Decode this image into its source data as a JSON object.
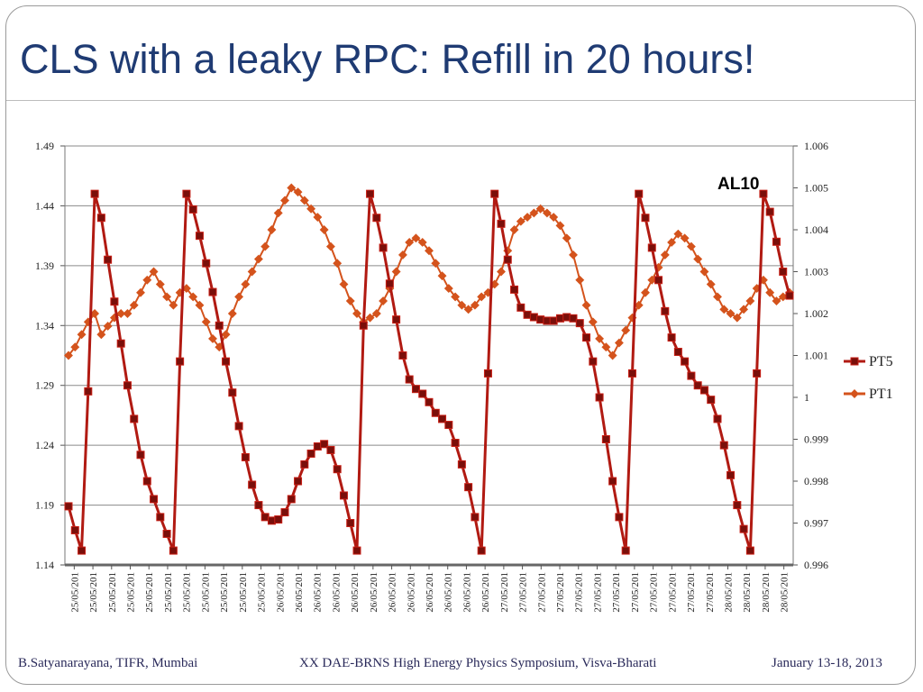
{
  "slide": {
    "title": "CLS with a leaky RPC: Refill in 20 hours!",
    "footer_left": "B.Satyanarayana, TIFR, Mumbai",
    "footer_center": "XX DAE-BRNS High Energy Physics Symposium, Visva-Bharati",
    "footer_right": "January 13-18, 2013"
  },
  "chart_data": {
    "type": "line",
    "title": "",
    "annotation": "AL10",
    "legend_placement": "right",
    "grid": "horizontal",
    "y_left": {
      "ticks": [
        "1.49",
        "1.44",
        "1.39",
        "1.34",
        "1.29",
        "1.24",
        "1.19",
        "1.14"
      ],
      "range": [
        1.14,
        1.49
      ]
    },
    "y_right": {
      "ticks": [
        "1.006",
        "1.005",
        "1.004",
        "1.003",
        "1.002",
        "1.001",
        "1",
        "0.999",
        "0.998",
        "0.997",
        "0.996"
      ],
      "range": [
        0.996,
        1.006
      ]
    },
    "x_tick_labels": [
      "25/05/201",
      "25/05/201",
      "25/05/201",
      "25/05/201",
      "25/05/201",
      "25/05/201",
      "25/05/201",
      "25/05/201",
      "25/05/201",
      "25/05/201",
      "25/05/201",
      "26/05/201",
      "26/05/201",
      "26/05/201",
      "26/05/201",
      "26/05/201",
      "26/05/201",
      "26/05/201",
      "26/05/201",
      "26/05/201",
      "26/05/201",
      "26/05/201",
      "26/05/201",
      "27/05/201",
      "27/05/201",
      "27/05/201",
      "27/05/201",
      "27/05/201",
      "27/05/201",
      "27/05/201",
      "27/05/201",
      "27/05/201",
      "27/05/201",
      "27/05/201",
      "27/05/201",
      "28/05/201",
      "28/05/201",
      "28/05/201",
      "28/05/201"
    ],
    "series": [
      {
        "name": "PT5",
        "axis": "left",
        "color": "#b11a12",
        "points": [
          [
            0,
            1.189
          ],
          [
            1,
            1.169
          ],
          [
            2,
            1.152
          ],
          [
            3,
            1.285
          ],
          [
            4,
            1.45
          ],
          [
            5,
            1.43
          ],
          [
            6,
            1.395
          ],
          [
            7,
            1.36
          ],
          [
            8,
            1.325
          ],
          [
            9,
            1.29
          ],
          [
            10,
            1.262
          ],
          [
            11,
            1.232
          ],
          [
            12,
            1.21
          ],
          [
            13,
            1.195
          ],
          [
            14,
            1.18
          ],
          [
            15,
            1.166
          ],
          [
            16,
            1.152
          ],
          [
            17,
            1.31
          ],
          [
            18,
            1.45
          ],
          [
            19,
            1.437
          ],
          [
            20,
            1.415
          ],
          [
            21,
            1.392
          ],
          [
            22,
            1.368
          ],
          [
            23,
            1.34
          ],
          [
            24,
            1.31
          ],
          [
            25,
            1.284
          ],
          [
            26,
            1.256
          ],
          [
            27,
            1.23
          ],
          [
            28,
            1.207
          ],
          [
            29,
            1.19
          ],
          [
            30,
            1.18
          ],
          [
            31,
            1.177
          ],
          [
            32,
            1.178
          ],
          [
            33,
            1.184
          ],
          [
            34,
            1.195
          ],
          [
            35,
            1.21
          ],
          [
            36,
            1.224
          ],
          [
            37,
            1.233
          ],
          [
            38,
            1.239
          ],
          [
            39,
            1.241
          ],
          [
            40,
            1.236
          ],
          [
            41,
            1.22
          ],
          [
            42,
            1.198
          ],
          [
            43,
            1.175
          ],
          [
            44,
            1.152
          ],
          [
            45,
            1.34
          ],
          [
            46,
            1.45
          ],
          [
            47,
            1.43
          ],
          [
            48,
            1.405
          ],
          [
            49,
            1.375
          ],
          [
            50,
            1.345
          ],
          [
            51,
            1.315
          ],
          [
            52,
            1.295
          ],
          [
            53,
            1.287
          ],
          [
            54,
            1.283
          ],
          [
            55,
            1.276
          ],
          [
            56,
            1.267
          ],
          [
            57,
            1.262
          ],
          [
            58,
            1.257
          ],
          [
            59,
            1.242
          ],
          [
            60,
            1.224
          ],
          [
            61,
            1.205
          ],
          [
            62,
            1.18
          ],
          [
            63,
            1.152
          ],
          [
            64,
            1.3
          ],
          [
            65,
            1.45
          ],
          [
            66,
            1.425
          ],
          [
            67,
            1.395
          ],
          [
            68,
            1.37
          ],
          [
            69,
            1.355
          ],
          [
            70,
            1.349
          ],
          [
            71,
            1.347
          ],
          [
            72,
            1.345
          ],
          [
            73,
            1.344
          ],
          [
            74,
            1.344
          ],
          [
            75,
            1.346
          ],
          [
            76,
            1.347
          ],
          [
            77,
            1.346
          ],
          [
            78,
            1.342
          ],
          [
            79,
            1.33
          ],
          [
            80,
            1.31
          ],
          [
            81,
            1.28
          ],
          [
            82,
            1.245
          ],
          [
            83,
            1.21
          ],
          [
            84,
            1.18
          ],
          [
            85,
            1.152
          ],
          [
            86,
            1.3
          ],
          [
            87,
            1.45
          ],
          [
            88,
            1.43
          ],
          [
            89,
            1.405
          ],
          [
            90,
            1.378
          ],
          [
            91,
            1.352
          ],
          [
            92,
            1.33
          ],
          [
            93,
            1.318
          ],
          [
            94,
            1.31
          ],
          [
            95,
            1.298
          ],
          [
            96,
            1.29
          ],
          [
            97,
            1.286
          ],
          [
            98,
            1.278
          ],
          [
            99,
            1.262
          ],
          [
            100,
            1.24
          ],
          [
            101,
            1.215
          ],
          [
            102,
            1.19
          ],
          [
            103,
            1.17
          ],
          [
            104,
            1.152
          ],
          [
            105,
            1.3
          ],
          [
            106,
            1.45
          ],
          [
            107,
            1.435
          ],
          [
            108,
            1.41
          ],
          [
            109,
            1.385
          ],
          [
            110,
            1.365
          ]
        ]
      },
      {
        "name": "PT1",
        "axis": "right",
        "color": "#d4531c",
        "points": [
          [
            0,
            1.001
          ],
          [
            1,
            1.0012
          ],
          [
            2,
            1.0015
          ],
          [
            3,
            1.0018
          ],
          [
            4,
            1.002
          ],
          [
            5,
            1.0015
          ],
          [
            6,
            1.0017
          ],
          [
            7,
            1.0019
          ],
          [
            8,
            1.002
          ],
          [
            9,
            1.002
          ],
          [
            10,
            1.0022
          ],
          [
            11,
            1.0025
          ],
          [
            12,
            1.0028
          ],
          [
            13,
            1.003
          ],
          [
            14,
            1.0027
          ],
          [
            15,
            1.0024
          ],
          [
            16,
            1.0022
          ],
          [
            17,
            1.0025
          ],
          [
            18,
            1.0026
          ],
          [
            19,
            1.0024
          ],
          [
            20,
            1.0022
          ],
          [
            21,
            1.0018
          ],
          [
            22,
            1.0014
          ],
          [
            23,
            1.0012
          ],
          [
            24,
            1.0015
          ],
          [
            25,
            1.002
          ],
          [
            26,
            1.0024
          ],
          [
            27,
            1.0027
          ],
          [
            28,
            1.003
          ],
          [
            29,
            1.0033
          ],
          [
            30,
            1.0036
          ],
          [
            31,
            1.004
          ],
          [
            32,
            1.0044
          ],
          [
            33,
            1.0047
          ],
          [
            34,
            1.005
          ],
          [
            35,
            1.0049
          ],
          [
            36,
            1.0047
          ],
          [
            37,
            1.0045
          ],
          [
            38,
            1.0043
          ],
          [
            39,
            1.004
          ],
          [
            40,
            1.0036
          ],
          [
            41,
            1.0032
          ],
          [
            42,
            1.0027
          ],
          [
            43,
            1.0023
          ],
          [
            44,
            1.002
          ],
          [
            45,
            1.0018
          ],
          [
            46,
            1.0019
          ],
          [
            47,
            1.002
          ],
          [
            48,
            1.0023
          ],
          [
            49,
            1.0026
          ],
          [
            50,
            1.003
          ],
          [
            51,
            1.0034
          ],
          [
            52,
            1.0037
          ],
          [
            53,
            1.0038
          ],
          [
            54,
            1.0037
          ],
          [
            55,
            1.0035
          ],
          [
            56,
            1.0032
          ],
          [
            57,
            1.0029
          ],
          [
            58,
            1.0026
          ],
          [
            59,
            1.0024
          ],
          [
            60,
            1.0022
          ],
          [
            61,
            1.0021
          ],
          [
            62,
            1.0022
          ],
          [
            63,
            1.0024
          ],
          [
            64,
            1.0025
          ],
          [
            65,
            1.0027
          ],
          [
            66,
            1.003
          ],
          [
            67,
            1.0035
          ],
          [
            68,
            1.004
          ],
          [
            69,
            1.0042
          ],
          [
            70,
            1.0043
          ],
          [
            71,
            1.0044
          ],
          [
            72,
            1.0045
          ],
          [
            73,
            1.0044
          ],
          [
            74,
            1.0043
          ],
          [
            75,
            1.0041
          ],
          [
            76,
            1.0038
          ],
          [
            77,
            1.0034
          ],
          [
            78,
            1.0028
          ],
          [
            79,
            1.0022
          ],
          [
            80,
            1.0018
          ],
          [
            81,
            1.0014
          ],
          [
            82,
            1.0012
          ],
          [
            83,
            1.001
          ],
          [
            84,
            1.0013
          ],
          [
            85,
            1.0016
          ],
          [
            86,
            1.0019
          ],
          [
            87,
            1.0022
          ],
          [
            88,
            1.0025
          ],
          [
            89,
            1.0028
          ],
          [
            90,
            1.0031
          ],
          [
            91,
            1.0034
          ],
          [
            92,
            1.0037
          ],
          [
            93,
            1.0039
          ],
          [
            94,
            1.0038
          ],
          [
            95,
            1.0036
          ],
          [
            96,
            1.0033
          ],
          [
            97,
            1.003
          ],
          [
            98,
            1.0027
          ],
          [
            99,
            1.0024
          ],
          [
            100,
            1.0021
          ],
          [
            101,
            1.002
          ],
          [
            102,
            1.0019
          ],
          [
            103,
            1.0021
          ],
          [
            104,
            1.0023
          ],
          [
            105,
            1.0026
          ],
          [
            106,
            1.0028
          ],
          [
            107,
            1.0025
          ],
          [
            108,
            1.0023
          ],
          [
            109,
            1.0024
          ],
          [
            110,
            1.0025
          ]
        ]
      }
    ]
  }
}
